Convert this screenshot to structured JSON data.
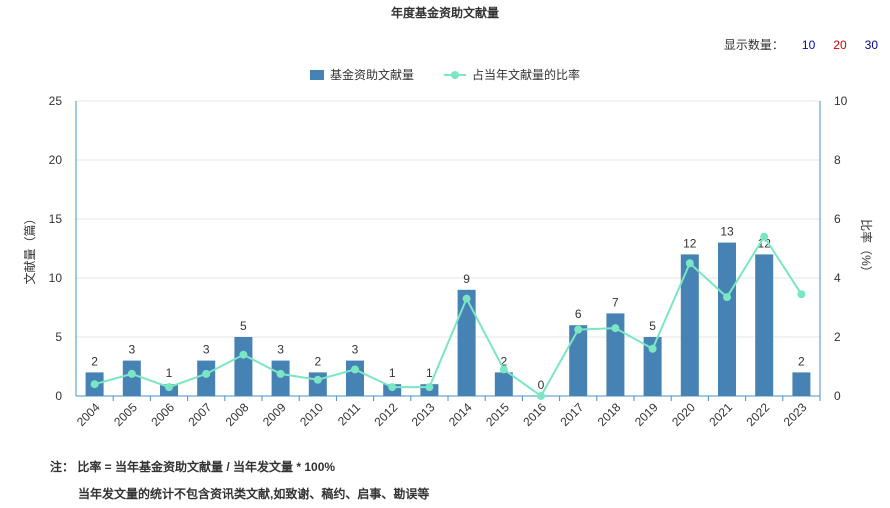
{
  "title": "年度基金资助文献量",
  "display_count": {
    "label": "显示数量：",
    "options": [
      {
        "text": "10",
        "color": "#0000cc"
      },
      {
        "text": "20",
        "color": "#cc0000"
      },
      {
        "text": "30",
        "color": "#000099"
      }
    ]
  },
  "legend": {
    "bar_label": "基金资助文献量",
    "line_label": "占当年文献量的比率"
  },
  "colors": {
    "bar": "#4682b4",
    "line": "#7be6c4",
    "axis": "#4a90c2",
    "grid": "#e5e5e5"
  },
  "notes": {
    "line1": "注： 比率 = 当年基金资助文献量 / 当年发文量 * 100%",
    "line2": "当年发文量的统计不包含资讯类文献,如致谢、稿约、启事、勘误等"
  },
  "chart_data": {
    "type": "bar",
    "categories": [
      "2004",
      "2005",
      "2006",
      "2007",
      "2008",
      "2009",
      "2010",
      "2011",
      "2012",
      "2013",
      "2014",
      "2015",
      "2016",
      "2017",
      "2018",
      "2019",
      "2020",
      "2021",
      "2022",
      "2023"
    ],
    "series": [
      {
        "name": "基金资助文献量",
        "type": "bar",
        "axis": "left",
        "values": [
          2,
          3,
          1,
          3,
          5,
          3,
          2,
          3,
          1,
          1,
          9,
          2,
          0,
          6,
          7,
          5,
          12,
          13,
          12,
          2
        ]
      },
      {
        "name": "占当年文献量的比率",
        "type": "line",
        "axis": "right",
        "values": [
          0.4,
          0.75,
          0.3,
          0.75,
          1.4,
          0.75,
          0.55,
          0.9,
          0.3,
          0.3,
          3.3,
          0.9,
          0,
          2.25,
          2.3,
          1.6,
          4.5,
          3.35,
          5.4,
          3.45
        ]
      }
    ],
    "ylabel": "文献量（篇）",
    "y2label": "比率（%）",
    "ylim": [
      0,
      25
    ],
    "y2lim": [
      0,
      10
    ],
    "yticks": [
      0,
      5,
      10,
      15,
      20,
      25
    ],
    "y2ticks": [
      0,
      2,
      4,
      6,
      8,
      10
    ],
    "grid": true,
    "legend_position": "top-center"
  }
}
